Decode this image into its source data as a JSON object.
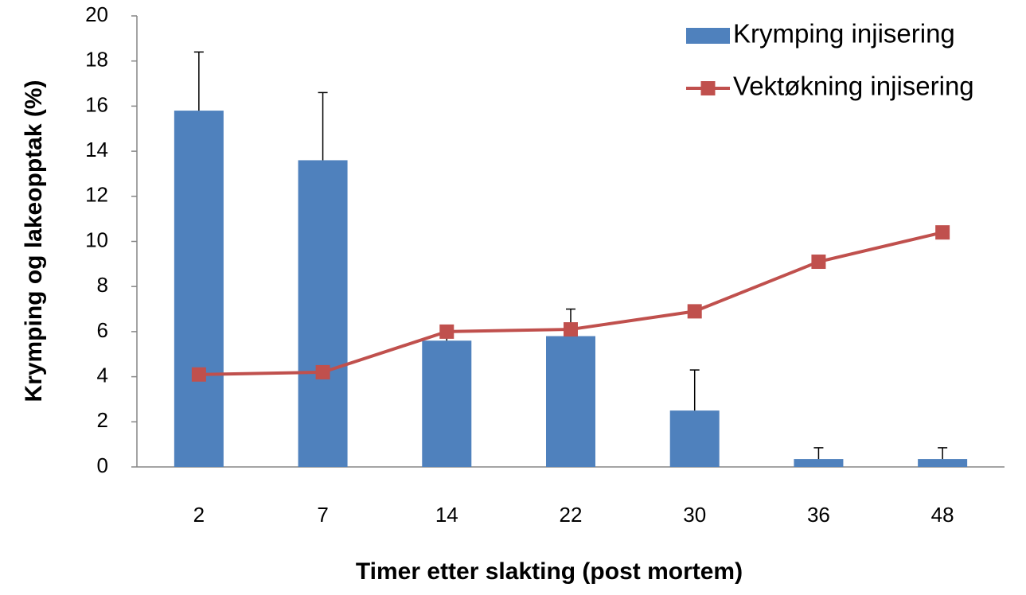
{
  "chart_data": {
    "type": "bar",
    "xlabel": "Timer etter slakting (post mortem)",
    "ylabel": "Krymping og lakeopptak  (%)",
    "categories": [
      "2",
      "7",
      "14",
      "22",
      "30",
      "36",
      "48"
    ],
    "series": [
      {
        "name": "Krymping injisering",
        "type": "bar",
        "color": "#4f81bd",
        "values": [
          15.8,
          13.6,
          5.6,
          5.8,
          2.5,
          0.35,
          0.35
        ],
        "errors": [
          2.6,
          3.0,
          0.3,
          1.2,
          1.8,
          0.5,
          0.5
        ]
      },
      {
        "name": "Vektøkning injisering",
        "type": "line",
        "color": "#c0504d",
        "values": [
          4.1,
          4.2,
          6.0,
          6.1,
          6.9,
          9.1,
          10.4
        ]
      }
    ],
    "ylim": [
      0,
      20
    ],
    "yticks": [
      0,
      2,
      4,
      6,
      8,
      10,
      12,
      14,
      16,
      18,
      20
    ],
    "legend": "top-right"
  }
}
